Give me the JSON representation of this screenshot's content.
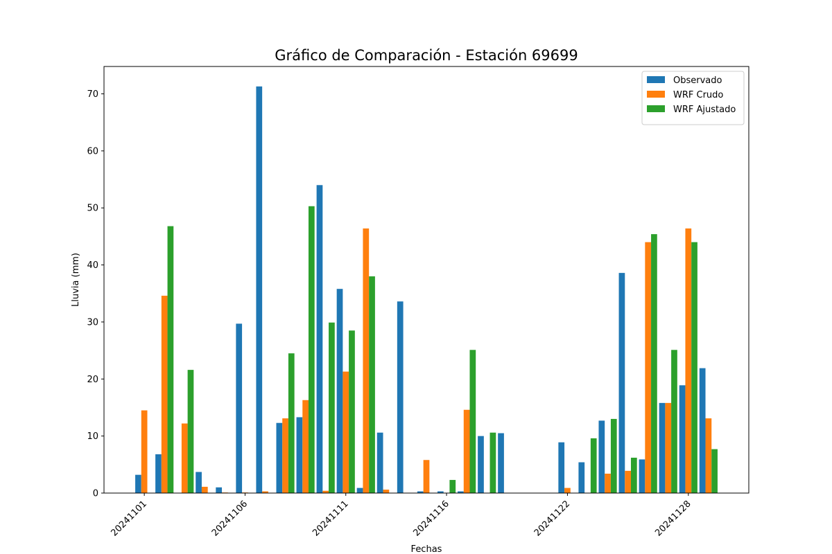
{
  "chart_data": {
    "type": "bar",
    "title": "Gráfico de Comparación - Estación 69699",
    "xlabel": "Fechas",
    "ylabel": "Lluvia (mm)",
    "ylim": [
      0,
      74.8
    ],
    "yticks": [
      0,
      10,
      20,
      30,
      40,
      50,
      60,
      70
    ],
    "xlim_dates": [
      "2024-10-30",
      "2024-12-01"
    ],
    "xtick_labels": [
      "20241101",
      "20241106",
      "20241111",
      "20241116",
      "20241122",
      "20241128"
    ],
    "legend_position": "top-right",
    "grid": false,
    "categories": [
      "20241101",
      "20241102",
      "20241103",
      "20241104",
      "20241105",
      "20241106",
      "20241107",
      "20241108",
      "20241109",
      "20241110",
      "20241111",
      "20241112",
      "20241113",
      "20241114",
      "20241115",
      "20241116",
      "20241117",
      "20241118",
      "20241119",
      "20241120",
      "20241121",
      "20241122",
      "20241123",
      "20241124",
      "20241125",
      "20241126",
      "20241127",
      "20241128",
      "20241129",
      "20241130"
    ],
    "series": [
      {
        "name": "Observado",
        "color": "#1f77b4",
        "values": [
          3.2,
          6.8,
          0,
          3.7,
          1.0,
          29.7,
          71.3,
          12.3,
          13.3,
          54.0,
          35.8,
          0.9,
          10.6,
          33.6,
          0.3,
          0.3,
          0.3,
          10.0,
          10.5,
          0,
          0,
          8.9,
          5.4,
          12.7,
          38.6,
          5.9,
          15.8,
          18.9,
          21.9,
          0
        ]
      },
      {
        "name": "WRF Crudo",
        "color": "#ff7f0e",
        "values": [
          14.5,
          34.6,
          12.2,
          1.1,
          0.1,
          0.1,
          0.3,
          13.1,
          16.3,
          0.4,
          21.3,
          46.4,
          0.6,
          0,
          5.8,
          0,
          14.6,
          0,
          0,
          0,
          0,
          0.9,
          0,
          3.4,
          3.9,
          44.0,
          15.8,
          46.4,
          13.1,
          0
        ]
      },
      {
        "name": "WRF Ajustado",
        "color": "#2ca02c",
        "values": [
          0,
          46.8,
          21.6,
          0,
          0,
          0,
          0,
          24.5,
          50.3,
          29.9,
          28.5,
          38.0,
          0,
          0,
          0,
          2.3,
          25.1,
          10.6,
          0,
          0,
          0,
          0,
          9.6,
          13.0,
          6.2,
          45.4,
          25.1,
          44.0,
          7.7,
          0
        ]
      }
    ]
  }
}
